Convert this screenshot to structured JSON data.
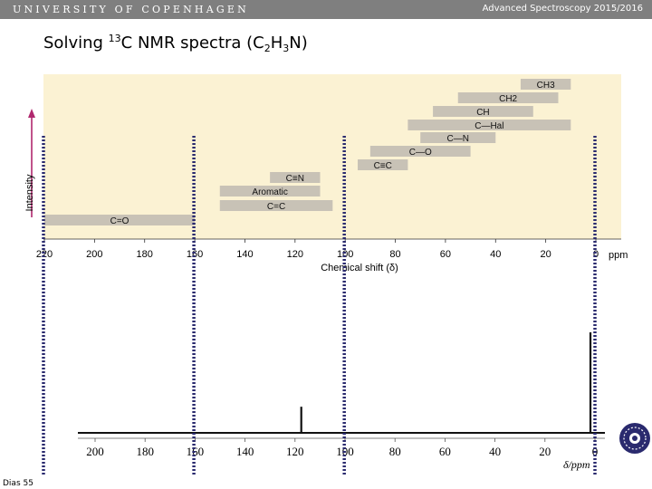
{
  "header": {
    "university": "UNIVERSITY OF COPENHAGEN",
    "course": "Advanced Spectroscopy 2015/2016"
  },
  "slide": {
    "title_parts": [
      {
        "text": "Solving ",
        "style": "normal"
      },
      {
        "text": "13",
        "style": "sup"
      },
      {
        "text": "C NMR spectra (C",
        "style": "normal"
      },
      {
        "text": "2",
        "style": "sub"
      },
      {
        "text": "H",
        "style": "normal"
      },
      {
        "text": "3",
        "style": "sub"
      },
      {
        "text": "N)",
        "style": "normal"
      }
    ],
    "slide_number": "Dias 55"
  },
  "colors": {
    "header_bar": "#7f7f7f",
    "chart_background": "#fbf2d3",
    "range_bar": "#c8c2b6",
    "intensity_arrow": "#b0286e",
    "dotted_marker": "#2a2a6e",
    "spectrum": "#111111"
  },
  "icons": {
    "logo": "university-seal-icon"
  },
  "chart_data": [
    {
      "type": "range-chart",
      "title": "",
      "xlabel": "Chemical shift (δ)",
      "ylabel": "Intensity",
      "x_unit": "ppm",
      "xlim": [
        220,
        0
      ],
      "x_reversed": true,
      "ticks": [
        220,
        200,
        180,
        160,
        140,
        120,
        100,
        80,
        60,
        40,
        20,
        0
      ],
      "ranges": [
        {
          "label": "CH3",
          "start": 30,
          "end": 10
        },
        {
          "label": "CH2",
          "start": 55,
          "end": 15
        },
        {
          "label": "CH",
          "start": 65,
          "end": 25
        },
        {
          "label": "C—Hal",
          "start": 75,
          "end": 10
        },
        {
          "label": "C—N",
          "start": 70,
          "end": 40
        },
        {
          "label": "C—O",
          "start": 90,
          "end": 50
        },
        {
          "label": "C≡C",
          "start": 95,
          "end": 75
        },
        {
          "label": "C≡N",
          "start": 130,
          "end": 110
        },
        {
          "label": "Aromatic",
          "start": 150,
          "end": 110
        },
        {
          "label": "C=C",
          "start": 150,
          "end": 105
        },
        {
          "label": "C=O",
          "start": 220,
          "end": 160
        }
      ]
    },
    {
      "type": "spectrum",
      "title": "",
      "xlabel": "δ/ppm",
      "xlim": [
        220,
        0
      ],
      "x_reversed": true,
      "ticks": [
        200,
        180,
        160,
        140,
        120,
        100,
        80,
        60,
        40,
        20,
        0
      ],
      "peaks": [
        {
          "ppm": 117.5,
          "relative_height": 0.26
        },
        {
          "ppm": 1.8,
          "relative_height": 1.0
        }
      ]
    }
  ],
  "markers_ppm": [
    220,
    160,
    100,
    0
  ]
}
